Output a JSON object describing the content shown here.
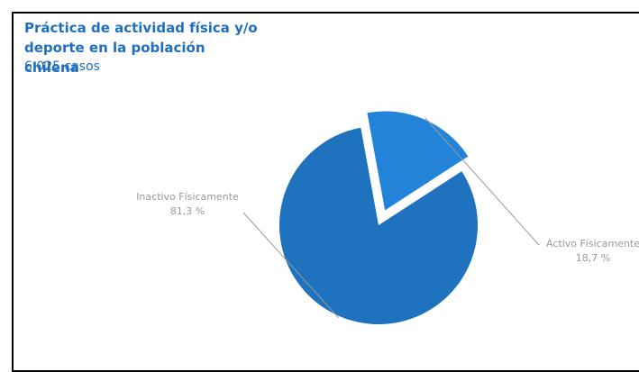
{
  "chart_data": {
    "type": "pie",
    "title": "Práctica de actividad física y/o deporte en la población chilena",
    "subtitle": "6.025 casos",
    "slices": [
      {
        "label": "Inactivo Físicamente",
        "value": 81.3,
        "value_label": "81,3 %",
        "color": "#1f72bd",
        "exploded": false
      },
      {
        "label": "Activo Físicamente",
        "value": 18.7,
        "value_label": "18,7 %",
        "color": "#2283d9",
        "exploded": true
      }
    ],
    "legend": "none"
  }
}
